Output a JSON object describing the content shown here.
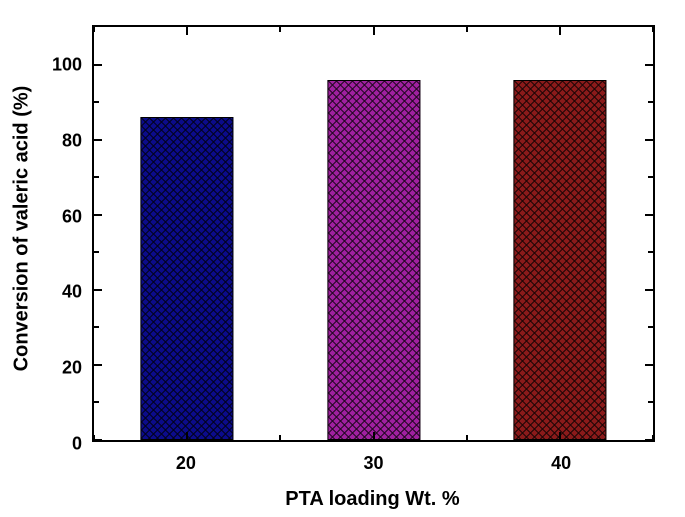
{
  "chart": {
    "type": "bar",
    "background_color": "#ffffff",
    "border_color": "#000000",
    "ylabel": "Conversion of valeric acid (%)",
    "xlabel": "PTA loading Wt. %",
    "label_fontsize": 20,
    "label_fontweight": "700",
    "tick_fontsize": 18,
    "tick_fontweight": "700",
    "ylim": [
      0,
      110
    ],
    "ytick_major": [
      0,
      20,
      40,
      60,
      80,
      100
    ],
    "ytick_minor": [
      10,
      30,
      50,
      70,
      90
    ],
    "xlim": [
      15,
      45
    ],
    "xtick_major": [
      20,
      30,
      40
    ],
    "xtick_minor": [
      15,
      25,
      35,
      45
    ],
    "bar_width_x": 5,
    "hatch_spacing": 8,
    "hatch_color": "#000000",
    "hatch_opacity": 0.8,
    "series": [
      {
        "x": 20,
        "value": 86,
        "color": "#0b0b8b"
      },
      {
        "x": 30,
        "value": 96,
        "color": "#a020a0"
      },
      {
        "x": 40,
        "value": 96,
        "color": "#8b1a1a"
      }
    ]
  }
}
